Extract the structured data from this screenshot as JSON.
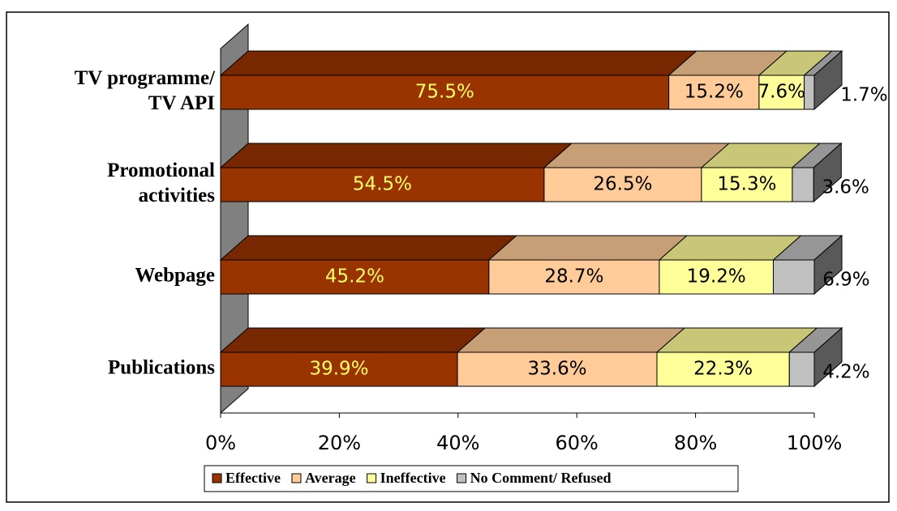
{
  "chart_data": {
    "type": "bar",
    "orientation": "horizontal",
    "stacked": true,
    "three_d": true,
    "categories": [
      [
        "TV programme/",
        "TV API"
      ],
      [
        "Promotional",
        "activities"
      ],
      [
        "Webpage"
      ],
      [
        "Publications"
      ]
    ],
    "series": [
      {
        "name": "Effective",
        "color": "#993300",
        "values": [
          75.5,
          54.5,
          45.2,
          39.9
        ],
        "value_labels": [
          "75.5%",
          "54.5%",
          "45.2%",
          "39.9%"
        ]
      },
      {
        "name": "Average",
        "color": "#ffcc99",
        "values": [
          15.2,
          26.5,
          28.7,
          33.6
        ],
        "value_labels": [
          "15.2%",
          "26.5%",
          "28.7%",
          "33.6%"
        ]
      },
      {
        "name": "Ineffective",
        "color": "#ffff99",
        "values": [
          7.6,
          15.3,
          19.2,
          22.3
        ],
        "value_labels": [
          "7.6%",
          "15.3%",
          "19.2%",
          "22.3%"
        ]
      },
      {
        "name": "No Comment/ Refused",
        "color": "#c0c0c0",
        "values": [
          1.7,
          3.6,
          6.9,
          4.2
        ],
        "value_labels": [
          "1.7%",
          "3.6%",
          "6.9%",
          "4.2%"
        ]
      }
    ],
    "xlim": [
      0,
      100
    ],
    "xticks": [
      {
        "value": 0,
        "label": "0%"
      },
      {
        "value": 20,
        "label": "20%"
      },
      {
        "value": 40,
        "label": "40%"
      },
      {
        "value": 60,
        "label": "60%"
      },
      {
        "value": 80,
        "label": "80%"
      },
      {
        "value": 100,
        "label": "100%"
      }
    ],
    "legend": "bottom"
  }
}
